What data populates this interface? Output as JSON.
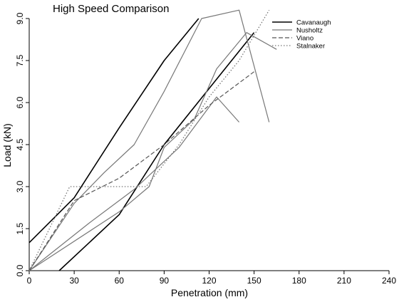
{
  "chart_data": {
    "type": "line",
    "title": "High Speed Comparison",
    "xlabel": "Penetration (mm)",
    "ylabel": "Load (kN)",
    "xlim": [
      0,
      240
    ],
    "ylim": [
      0,
      9.0
    ],
    "x_ticks": [
      "0",
      "30",
      "60",
      "90",
      "120",
      "150",
      "180",
      "210",
      "240"
    ],
    "y_ticks": [
      "0.0",
      "1.5",
      "3.0",
      "4.5",
      "6.0",
      "7.5",
      "9.0"
    ],
    "legend_position": "top-right",
    "grid": false,
    "series": [
      {
        "name": "Cavanaugh",
        "color": "#000000",
        "dash": "solid",
        "width": 1.6,
        "lines": [
          [
            [
              0,
              1.0
            ],
            [
              30,
              2.6
            ],
            [
              60,
              5.1
            ],
            [
              90,
              7.5
            ],
            [
              113,
              9.0
            ]
          ],
          [
            [
              20,
              0.0
            ],
            [
              60,
              2.0
            ],
            [
              90,
              4.5
            ],
            [
              120,
              6.5
            ],
            [
              150,
              8.5
            ]
          ]
        ]
      },
      {
        "name": "Nusholtz",
        "color": "#777777",
        "dash": "solid",
        "width": 1.2,
        "lines": [
          [
            [
              0,
              0.0
            ],
            [
              30,
              2.4
            ],
            [
              50,
              3.5
            ],
            [
              70,
              4.5
            ],
            [
              90,
              6.4
            ],
            [
              115,
              9.0
            ],
            [
              140,
              9.3
            ],
            [
              160,
              5.3
            ]
          ],
          [
            [
              0,
              0.0
            ],
            [
              60,
              2.1
            ],
            [
              80,
              3.0
            ],
            [
              90,
              4.4
            ],
            [
              110,
              5.4
            ],
            [
              125,
              7.2
            ],
            [
              145,
              8.5
            ],
            [
              165,
              7.9
            ]
          ],
          [
            [
              0,
              0.0
            ],
            [
              40,
              1.7
            ],
            [
              70,
              2.9
            ],
            [
              100,
              4.4
            ],
            [
              125,
              6.2
            ],
            [
              140,
              5.3
            ]
          ]
        ]
      },
      {
        "name": "Viano",
        "color": "#555555",
        "dash": "dashed",
        "width": 1.2,
        "lines": [
          [
            [
              0,
              0.0
            ],
            [
              30,
              2.5
            ],
            [
              60,
              3.3
            ],
            [
              90,
              4.5
            ],
            [
              120,
              5.9
            ],
            [
              150,
              7.1
            ]
          ]
        ]
      },
      {
        "name": "Stalnaker",
        "color": "#777777",
        "dash": "dotted",
        "width": 1.3,
        "lines": [
          [
            [
              0,
              0.0
            ],
            [
              27,
              3.0
            ],
            [
              78,
              3.0
            ],
            [
              100,
              4.5
            ],
            [
              120,
              6.2
            ],
            [
              140,
              7.5
            ],
            [
              160,
              9.3
            ]
          ]
        ]
      }
    ]
  }
}
